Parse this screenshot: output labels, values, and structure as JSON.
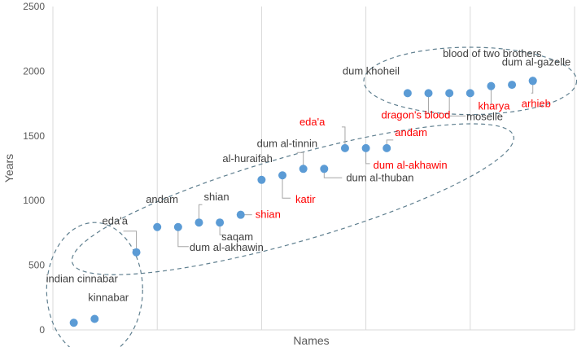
{
  "chart_data": {
    "type": "scatter",
    "xlabel": "Names",
    "ylabel": "Years",
    "ylim": [
      0,
      2500
    ],
    "yticks": [
      "0",
      "500",
      "1000",
      "1500",
      "2000",
      "2500"
    ],
    "xlim": [
      0,
      25
    ],
    "grid": "vertical",
    "colors": {
      "marker": "#5b9bd5",
      "label_default": "#404040",
      "label_highlight": "#ff0000",
      "grid": "#d9d9d9",
      "ellipse": "#5f7f8f"
    },
    "points": [
      {
        "x": 1,
        "y": 55,
        "label": "indian cinnabar",
        "highlight": false
      },
      {
        "x": 2,
        "y": 85,
        "label": "kinnabar",
        "highlight": false
      },
      {
        "x": 4,
        "y": 600,
        "label": "eda'a",
        "highlight": false
      },
      {
        "x": 5,
        "y": 795,
        "label": "andam",
        "highlight": false
      },
      {
        "x": 6,
        "y": 795,
        "label": "dum al-akhawin",
        "highlight": false
      },
      {
        "x": 7,
        "y": 830,
        "label": "shian",
        "highlight": false
      },
      {
        "x": 8,
        "y": 830,
        "label": "saqam",
        "highlight": false
      },
      {
        "x": 9,
        "y": 890,
        "label": "shian",
        "highlight": true
      },
      {
        "x": 10,
        "y": 1160,
        "label": "al-huraifah",
        "highlight": false
      },
      {
        "x": 11,
        "y": 1195,
        "label": "katir",
        "highlight": true
      },
      {
        "x": 12,
        "y": 1245,
        "label": "dum al-tinnin",
        "highlight": false
      },
      {
        "x": 13,
        "y": 1245,
        "label": "dum al-thuban",
        "highlight": false
      },
      {
        "x": 14,
        "y": 1405,
        "label": "eda'a",
        "highlight": true
      },
      {
        "x": 15,
        "y": 1405,
        "label": "dum al-akhawin",
        "highlight": true
      },
      {
        "x": 16,
        "y": 1405,
        "label": "andam",
        "highlight": true
      },
      {
        "x": 17,
        "y": 1830,
        "label": "dum khoheil",
        "highlight": false
      },
      {
        "x": 18,
        "y": 1830,
        "label": "dragon's blood",
        "highlight": true
      },
      {
        "x": 19,
        "y": 1830,
        "label": "moselle",
        "highlight": false
      },
      {
        "x": 20,
        "y": 1830,
        "label": "",
        "highlight": false
      },
      {
        "x": 21,
        "y": 1885,
        "label": "kharya",
        "highlight": true
      },
      {
        "x": 22,
        "y": 1895,
        "label": "blood of two brothers",
        "highlight": false
      },
      {
        "x": 23,
        "y": 1925,
        "label": "dum al-gazelle",
        "highlight": false
      },
      {
        "x": 23,
        "y": 1925,
        "label": "arhieb",
        "highlight": true
      }
    ],
    "clusters": [
      {
        "name": "cluster-early",
        "cx": 2,
        "cy": 310,
        "rx": 2.3,
        "ry": 520
      },
      {
        "name": "cluster-middle",
        "cx": 11.5,
        "cy": 1010,
        "rx": 11,
        "ry": 330,
        "rotate": -16
      },
      {
        "name": "cluster-late",
        "cx": 20,
        "cy": 1925,
        "rx": 5.1,
        "ry": 260
      }
    ]
  }
}
